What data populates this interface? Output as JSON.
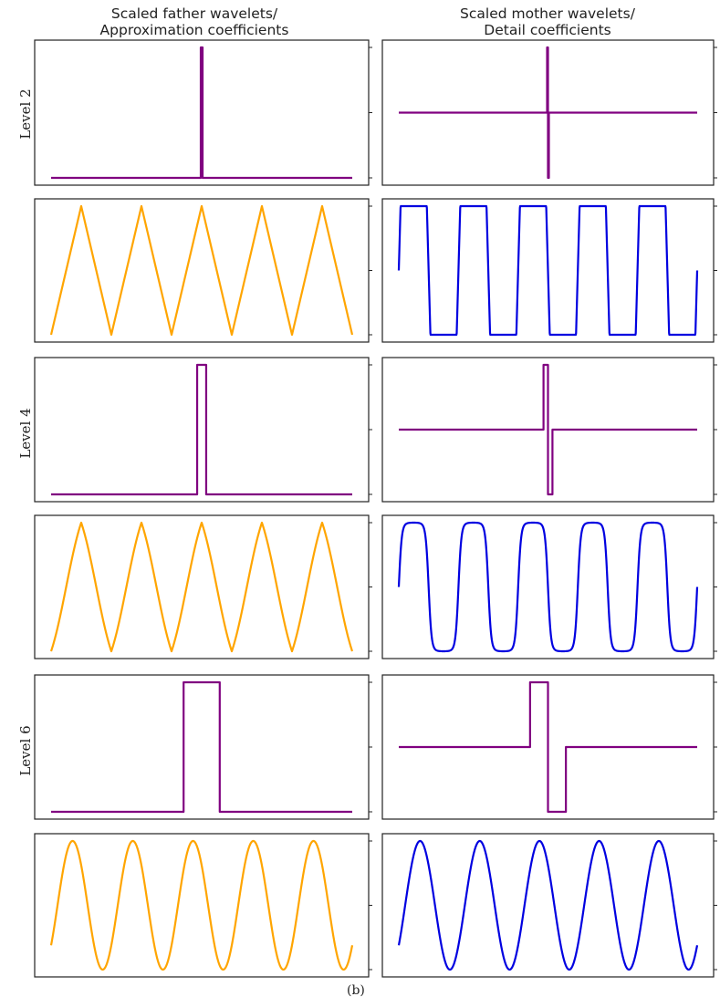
{
  "figure": {
    "column_titles": [
      [
        "Scaled father wavelets/",
        "Approximation coefficients"
      ],
      [
        "Scaled mother wavelets/",
        "Detail coefficients"
      ]
    ],
    "row_labels": [
      "Level 2",
      "Level 4",
      "Level 6"
    ],
    "caption": "(b)"
  },
  "colors": {
    "purple": "#800080",
    "orange": "#FFA500",
    "blue": "#0000E0",
    "frame": "#222222"
  },
  "chart_data": [
    {
      "type": "line",
      "panel": "father-level-2",
      "color": "purple",
      "series": [
        {
          "x": [
            0,
            0.497,
            0.497,
            0.503,
            0.503,
            1
          ],
          "y": [
            0,
            0,
            1,
            1,
            0,
            0
          ]
        }
      ]
    },
    {
      "type": "line",
      "panel": "mother-level-2",
      "color": "purple",
      "series": [
        {
          "x": [
            0,
            0.497,
            0.497,
            0.5,
            0.5,
            0.503,
            0.503,
            1
          ],
          "y": [
            0,
            0,
            1,
            1,
            -1,
            -1,
            0,
            0
          ]
        }
      ]
    },
    {
      "type": "line",
      "panel": "approx-coefficients-level-2",
      "color": "orange",
      "shape": "triangle",
      "cycles": 5,
      "ylim": [
        0,
        1
      ]
    },
    {
      "type": "line",
      "panel": "detail-coefficients-level-2",
      "color": "blue",
      "shape": "square",
      "cycles": 5,
      "ylim": [
        0,
        1
      ]
    },
    {
      "type": "line",
      "panel": "father-level-4",
      "color": "purple",
      "series": [
        {
          "x": [
            0,
            0.485,
            0.485,
            0.515,
            0.515,
            1
          ],
          "y": [
            0,
            0,
            1,
            1,
            0,
            0
          ]
        }
      ]
    },
    {
      "type": "line",
      "panel": "mother-level-4",
      "color": "purple",
      "series": [
        {
          "x": [
            0,
            0.485,
            0.485,
            0.5,
            0.5,
            0.515,
            0.515,
            1
          ],
          "y": [
            0,
            0,
            1,
            1,
            -1,
            -1,
            0,
            0
          ]
        }
      ]
    },
    {
      "type": "line",
      "panel": "approx-coefficients-level-4",
      "color": "orange",
      "shape": "rounded-triangle",
      "cycles": 5,
      "ylim": [
        0,
        1
      ]
    },
    {
      "type": "line",
      "panel": "detail-coefficients-level-4",
      "color": "blue",
      "shape": "rounded-square",
      "cycles": 5,
      "ylim": [
        0,
        1
      ]
    },
    {
      "type": "line",
      "panel": "father-level-6",
      "color": "purple",
      "series": [
        {
          "x": [
            0,
            0.44,
            0.44,
            0.56,
            0.56,
            1
          ],
          "y": [
            0,
            0,
            1,
            1,
            0,
            0
          ]
        }
      ]
    },
    {
      "type": "line",
      "panel": "mother-level-6",
      "color": "purple",
      "series": [
        {
          "x": [
            0,
            0.44,
            0.44,
            0.5,
            0.5,
            0.56,
            0.56,
            1
          ],
          "y": [
            0,
            0,
            1,
            1,
            -1,
            -1,
            0,
            0
          ]
        }
      ]
    },
    {
      "type": "line",
      "panel": "approx-coefficients-level-6",
      "color": "orange",
      "shape": "sine",
      "cycles": 5,
      "ylim": [
        0,
        1
      ]
    },
    {
      "type": "line",
      "panel": "detail-coefficients-level-6",
      "color": "blue",
      "shape": "sine",
      "cycles": 5,
      "ylim": [
        0,
        1
      ]
    }
  ]
}
